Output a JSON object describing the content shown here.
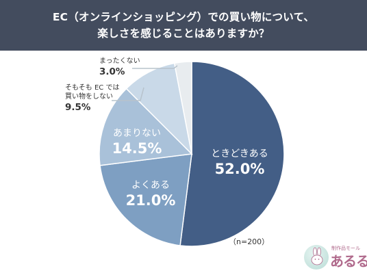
{
  "header": {
    "line1": "EC（オンラインショッピング）での買い物について、",
    "line2": "楽しさを感じることはありますか？"
  },
  "chart_data": {
    "type": "pie",
    "title": "EC（オンラインショッピング）での買い物について、楽しさを感じることはありますか？",
    "slices": [
      {
        "label": "ときどきある",
        "value": 52.0,
        "display": "52.0%",
        "color": "#435e86"
      },
      {
        "label": "よくある",
        "value": 21.0,
        "display": "21.0%",
        "color": "#7e9fc2"
      },
      {
        "label": "あまりない",
        "value": 14.5,
        "display": "14.5%",
        "color": "#a9c1d9"
      },
      {
        "label": "そもそも EC では買い物をしない",
        "value": 9.5,
        "display": "9.5%",
        "color": "#c9d9e8"
      },
      {
        "label": "まったくない",
        "value": 3.0,
        "display": "3.0%",
        "color": "#e8ecef"
      }
    ],
    "start": "top",
    "direction": "clockwise",
    "note": "（n=200）"
  },
  "labels": {
    "sometimes_text": "ときどきある",
    "sometimes_val": "52.0%",
    "often_text": "よくある",
    "often_val": "21.0%",
    "rarely_text": "あまりない",
    "rarely_val": "14.5%",
    "noec_text_1": "そもそも EC では",
    "noec_text_2": "買い物をしない",
    "noec_val": "9.5%",
    "never_text": "まったくない",
    "never_val": "3.0%"
  },
  "logo": {
    "small": "制作品モール",
    "big": "あるる"
  },
  "colors": {
    "header_bg": "#434c5e",
    "leader": "#b7c3cc",
    "brand": "#b06a8c"
  }
}
